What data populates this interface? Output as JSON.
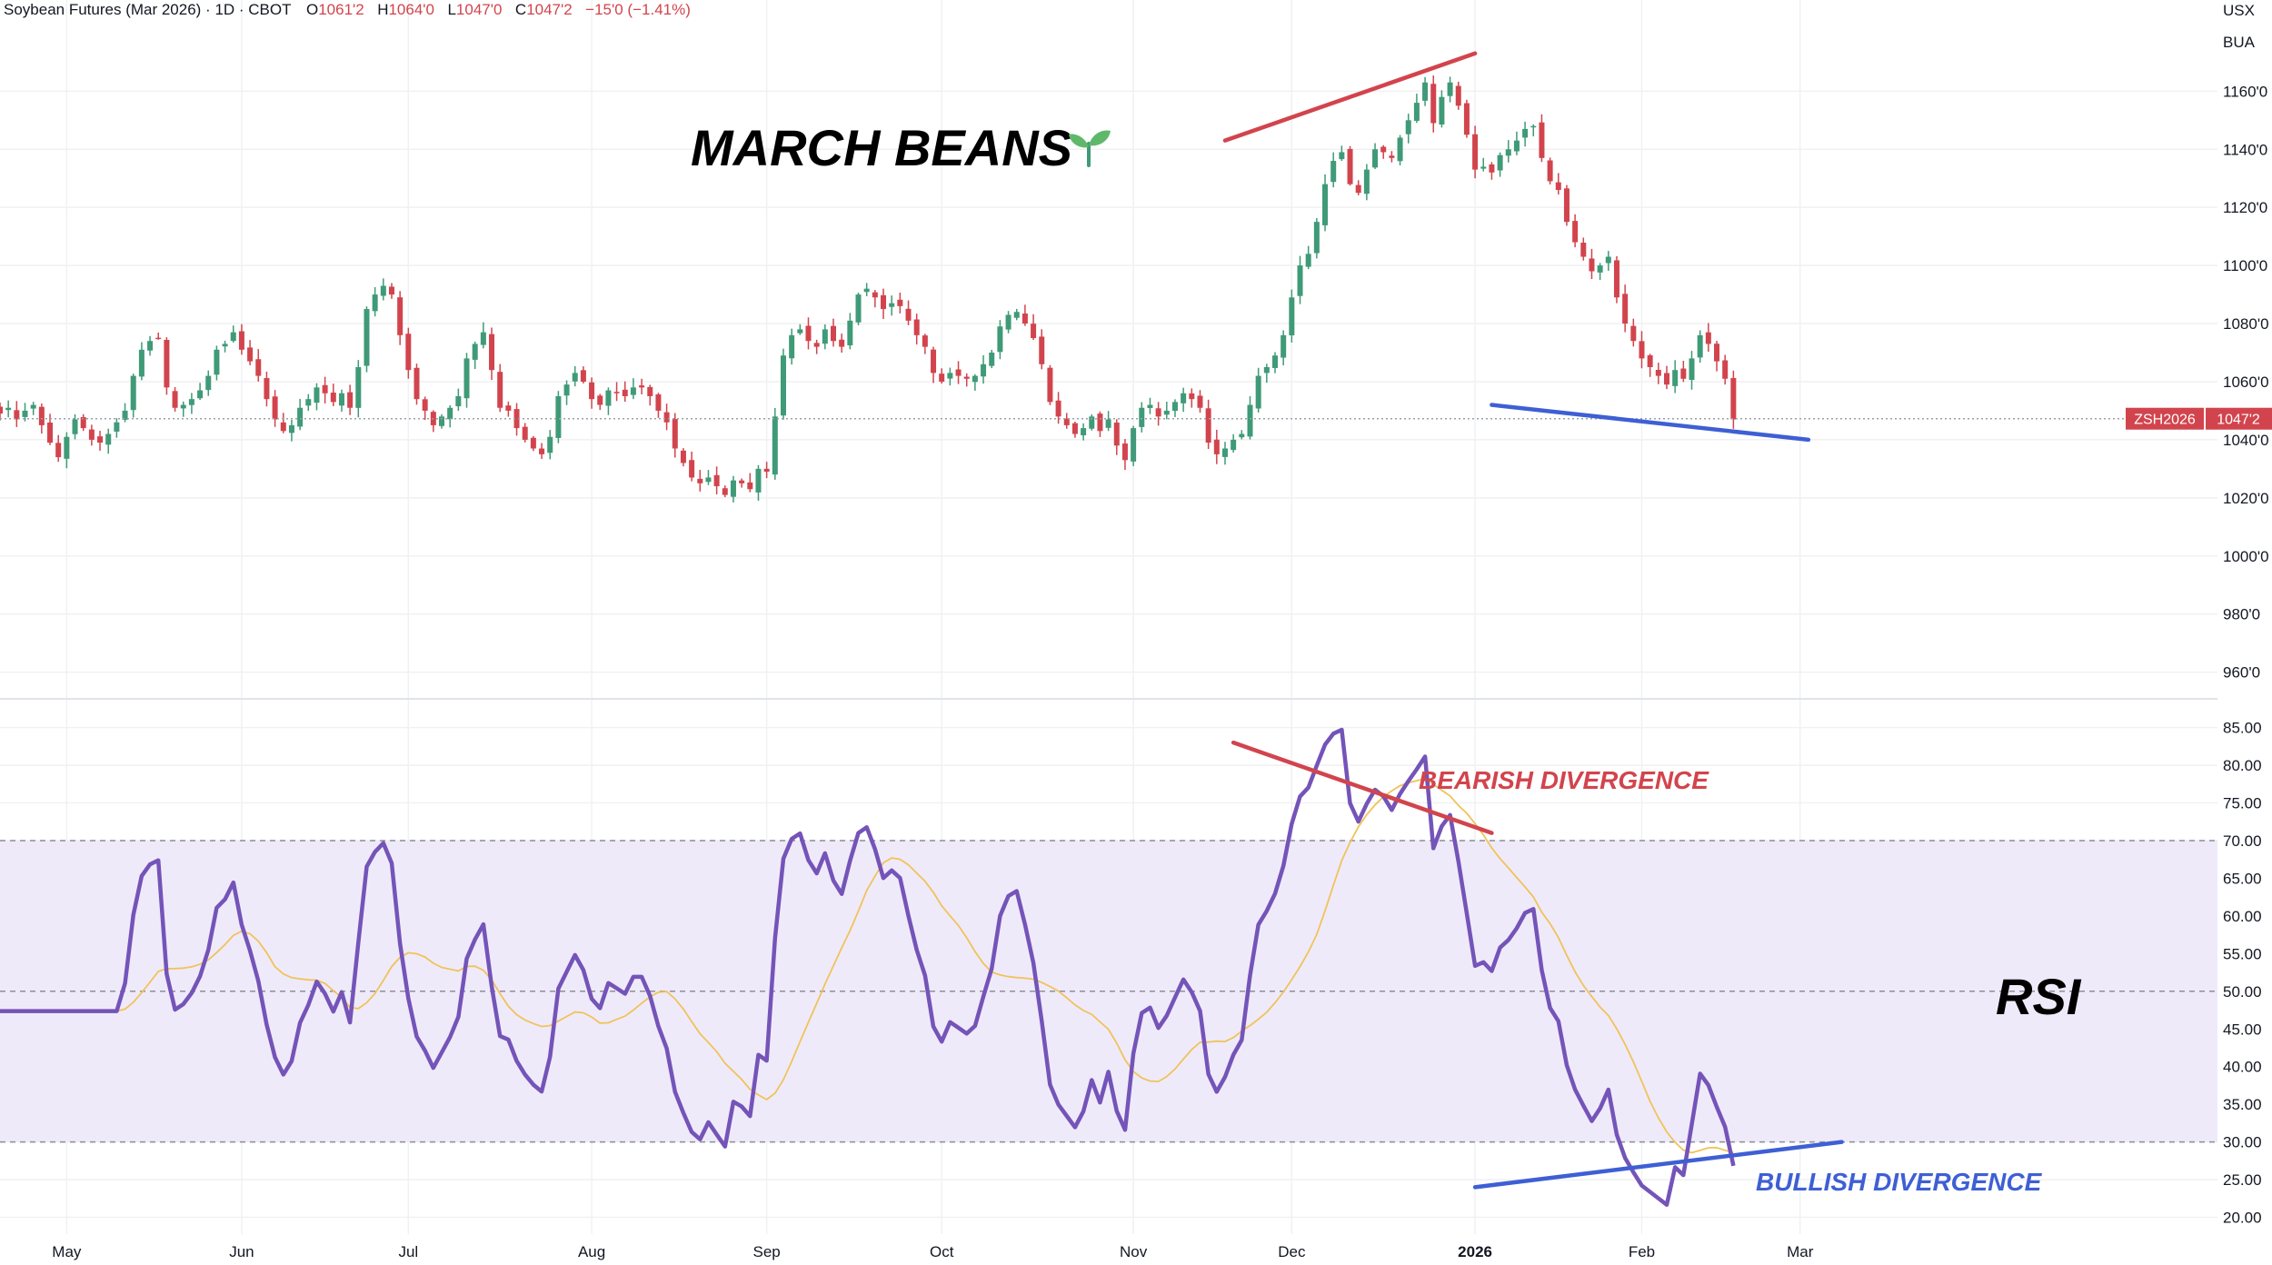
{
  "header": {
    "symbol": "Soybean Futures (Mar 2026) · 1D · CBOT",
    "o_label": "O",
    "o_value": "1061'2",
    "h_label": "H",
    "h_value": "1064'0",
    "l_label": "L",
    "l_value": "1047'0",
    "c_label": "C",
    "c_value": "1047'2",
    "change": "−15'0 (−1.41%)",
    "currency": "USX",
    "unit": "BUA"
  },
  "colors": {
    "up": "#3f9a78",
    "down": "#d2444d",
    "rsi_line": "#7454b8",
    "rsi_ma": "#f0c35a",
    "rsi_band": "#efeafa",
    "bearish": "#d2444d",
    "bullish": "#3e5fd4",
    "grid": "#f0f1f3",
    "text": "#131722"
  },
  "annotations": {
    "title": "MARCH BEANS",
    "rsi_label": "RSI",
    "bearish": "BEARISH DIVERGENCE",
    "bullish": "BULLISH DIVERGENCE",
    "icon": "seedling-icon"
  },
  "price_tag": {
    "symbol": "ZSH2026",
    "value": "1047'2",
    "price": 1047.25
  },
  "chart_data": [
    {
      "type": "candlestick",
      "title": "Soybean Futures (Mar 2026) · 1D · CBOT",
      "ylim": [
        953,
        1182
      ],
      "y_ticks": [
        {
          "value": 960,
          "label": "960'0"
        },
        {
          "value": 980,
          "label": "980'0"
        },
        {
          "value": 1000,
          "label": "1000'0"
        },
        {
          "value": 1020,
          "label": "1020'0"
        },
        {
          "value": 1040,
          "label": "1040'0"
        },
        {
          "value": 1060,
          "label": "1060'0"
        },
        {
          "value": 1080,
          "label": "1080'0"
        },
        {
          "value": 1100,
          "label": "1100'0"
        },
        {
          "value": 1120,
          "label": "1120'0"
        },
        {
          "value": 1140,
          "label": "1140'0"
        },
        {
          "value": 1160,
          "label": "1160'0"
        }
      ],
      "x_ticks": [
        {
          "date": "2025-05-01",
          "label": "May"
        },
        {
          "date": "2025-06-02",
          "label": "Jun"
        },
        {
          "date": "2025-07-01",
          "label": "Jul"
        },
        {
          "date": "2025-08-01",
          "label": "Aug"
        },
        {
          "date": "2025-09-02",
          "label": "Sep"
        },
        {
          "date": "2025-10-01",
          "label": "Oct"
        },
        {
          "date": "2025-11-03",
          "label": "Nov"
        },
        {
          "date": "2025-12-01",
          "label": "Dec"
        },
        {
          "date": "2026-01-02",
          "label": "2026"
        },
        {
          "date": "2026-02-02",
          "label": "Feb"
        },
        {
          "date": "2026-03-02",
          "label": "Mar"
        }
      ],
      "closes": [
        1049,
        1051,
        1047,
        1050,
        1052,
        1045,
        1039,
        1034,
        1041,
        1047,
        1044,
        1040,
        1039,
        1042,
        1046,
        1050,
        1062,
        1071,
        1074,
        1075,
        1058,
        1051,
        1052,
        1054,
        1057,
        1062,
        1071,
        1073,
        1077,
        1071,
        1067,
        1062,
        1054,
        1047,
        1043,
        1045,
        1051,
        1054,
        1058,
        1056,
        1053,
        1056,
        1051,
        1065,
        1085,
        1090,
        1093,
        1090,
        1076,
        1064,
        1054,
        1050,
        1045,
        1048,
        1051,
        1055,
        1068,
        1073,
        1077,
        1064,
        1051,
        1050,
        1044,
        1040,
        1037,
        1035,
        1041,
        1055,
        1059,
        1063,
        1060,
        1054,
        1052,
        1057,
        1056,
        1055,
        1058,
        1058,
        1055,
        1050,
        1046,
        1037,
        1032,
        1027,
        1025,
        1027,
        1024,
        1021,
        1026,
        1025,
        1023,
        1030,
        1029,
        1048,
        1069,
        1076,
        1078,
        1074,
        1072,
        1078,
        1074,
        1072,
        1081,
        1090,
        1092,
        1089,
        1085,
        1087,
        1086,
        1081,
        1076,
        1072,
        1063,
        1060,
        1063,
        1062,
        1061,
        1062,
        1066,
        1070,
        1079,
        1083,
        1084,
        1080,
        1075,
        1066,
        1053,
        1048,
        1045,
        1042,
        1044,
        1048,
        1043,
        1047,
        1038,
        1033,
        1044,
        1051,
        1052,
        1048,
        1050,
        1053,
        1056,
        1054,
        1051,
        1039,
        1035,
        1037,
        1040,
        1042,
        1052,
        1062,
        1065,
        1069,
        1076,
        1089,
        1100,
        1104,
        1115,
        1128,
        1136,
        1139,
        1128,
        1125,
        1133,
        1140,
        1139,
        1137,
        1144,
        1150,
        1156,
        1163,
        1149,
        1158,
        1163,
        1155,
        1145,
        1133,
        1134,
        1132,
        1138,
        1140,
        1143,
        1147,
        1148,
        1137,
        1129,
        1126,
        1115,
        1108,
        1103,
        1098,
        1100,
        1103,
        1089,
        1080,
        1074,
        1068,
        1065,
        1062,
        1059,
        1064,
        1061,
        1068,
        1076,
        1073,
        1067,
        1061,
        1047
      ]
    },
    {
      "type": "line",
      "ylim": [
        18.5,
        87
      ],
      "y_ticks": [
        20,
        25,
        30,
        35,
        40,
        45,
        50,
        55,
        60,
        65,
        70,
        75,
        80,
        85
      ],
      "bands": {
        "upper": 70,
        "middle": 50,
        "lower": 30
      },
      "series": []
    }
  ]
}
